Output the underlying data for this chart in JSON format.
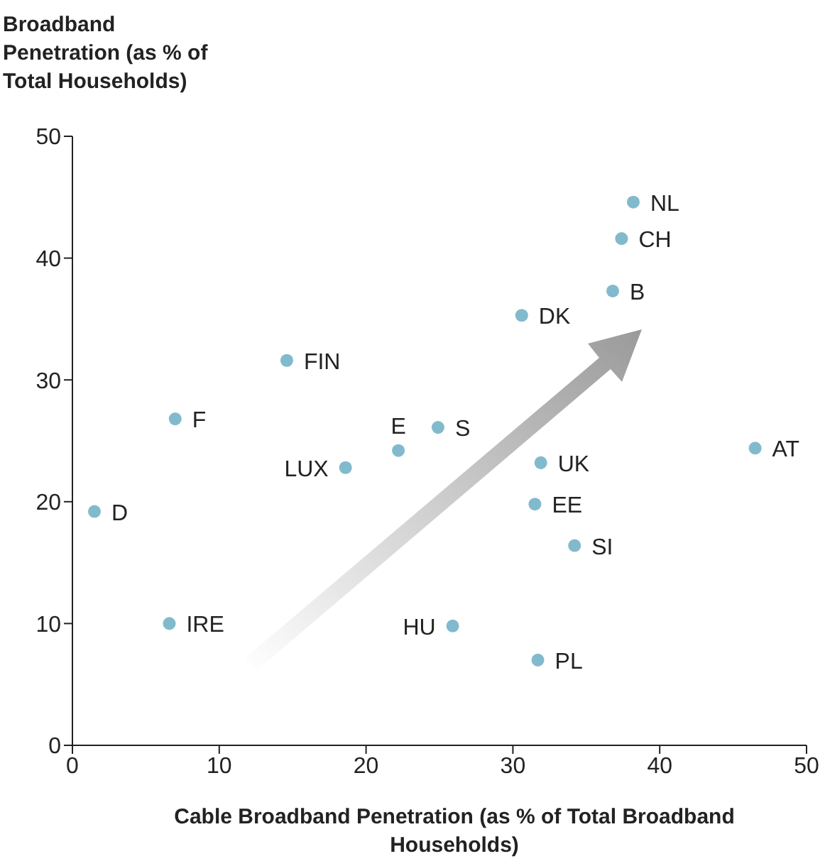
{
  "chart_data": {
    "type": "scatter",
    "ylabel": "Broadband Penetration (as % of Total Households)",
    "xlabel": "Cable Broadband Penetration (as % of Total Broadband Households)",
    "x": [
      1.5,
      6.6,
      7.0,
      14.6,
      18.6,
      22.2,
      24.9,
      25.9,
      30.6,
      31.9,
      31.5,
      31.7,
      34.2,
      36.8,
      37.4,
      38.2,
      46.5
    ],
    "values": [
      19.2,
      10.0,
      26.8,
      31.6,
      22.8,
      24.2,
      26.1,
      9.8,
      35.3,
      23.2,
      19.8,
      7.0,
      16.4,
      37.3,
      41.6,
      44.6,
      24.4
    ],
    "color": "#82bacd",
    "marker": "circle",
    "xlim": [
      0,
      50
    ],
    "ylim": [
      0,
      50
    ],
    "xticks": [
      0,
      10,
      20,
      30,
      40,
      50
    ],
    "yticks": [
      0,
      10,
      20,
      30,
      40,
      50
    ],
    "grid": false,
    "legend": false,
    "annotations": [
      {
        "text": "D",
        "x": 1.5,
        "y": 19.2
      },
      {
        "text": "IRE",
        "x": 6.6,
        "y": 10.0
      },
      {
        "text": "F",
        "x": 7.0,
        "y": 26.8
      },
      {
        "text": "FIN",
        "x": 14.6,
        "y": 31.6
      },
      {
        "text": "LUX",
        "x": 18.6,
        "y": 22.8
      },
      {
        "text": "E",
        "x": 22.2,
        "y": 24.2
      },
      {
        "text": "S",
        "x": 24.9,
        "y": 26.1
      },
      {
        "text": "HU",
        "x": 25.9,
        "y": 9.8
      },
      {
        "text": "DK",
        "x": 30.6,
        "y": 35.3
      },
      {
        "text": "UK",
        "x": 31.9,
        "y": 23.2
      },
      {
        "text": "EE",
        "x": 31.5,
        "y": 19.8
      },
      {
        "text": "PL",
        "x": 31.7,
        "y": 7.0
      },
      {
        "text": "SI",
        "x": 34.2,
        "y": 16.4
      },
      {
        "text": "B",
        "x": 36.8,
        "y": 37.3
      },
      {
        "text": "CH",
        "x": 37.4,
        "y": 41.6
      },
      {
        "text": "NL",
        "x": 38.2,
        "y": 44.6
      },
      {
        "text": "AT",
        "x": 46.5,
        "y": 24.4
      }
    ]
  }
}
